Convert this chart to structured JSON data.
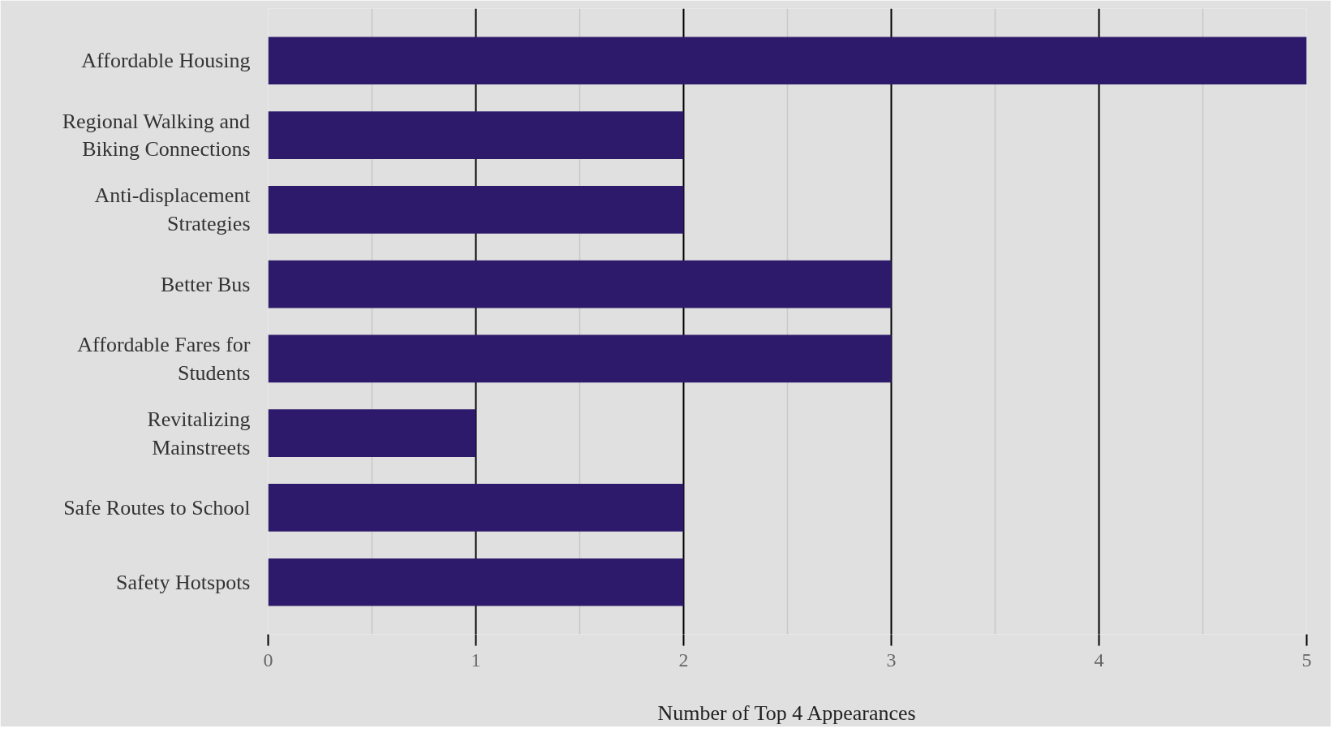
{
  "chart_data": {
    "type": "bar",
    "orientation": "horizontal",
    "xlabel": "Number of Top 4 Appearances",
    "categories": [
      "Affordable Housing",
      "Regional Walking and Biking Connections",
      "Anti-displacement Strategies",
      "Better Bus",
      "Affordable Fares for Students",
      "Revitalizing Mainstreets",
      "Safe Routes to School",
      "Safety Hotspots"
    ],
    "values": [
      5,
      2,
      2,
      3,
      3,
      1,
      2,
      2
    ],
    "color": "#2e1a6b",
    "xlim": [
      0,
      5
    ],
    "xticks": [
      0,
      1,
      2,
      3,
      4,
      5
    ],
    "grid": "x"
  }
}
